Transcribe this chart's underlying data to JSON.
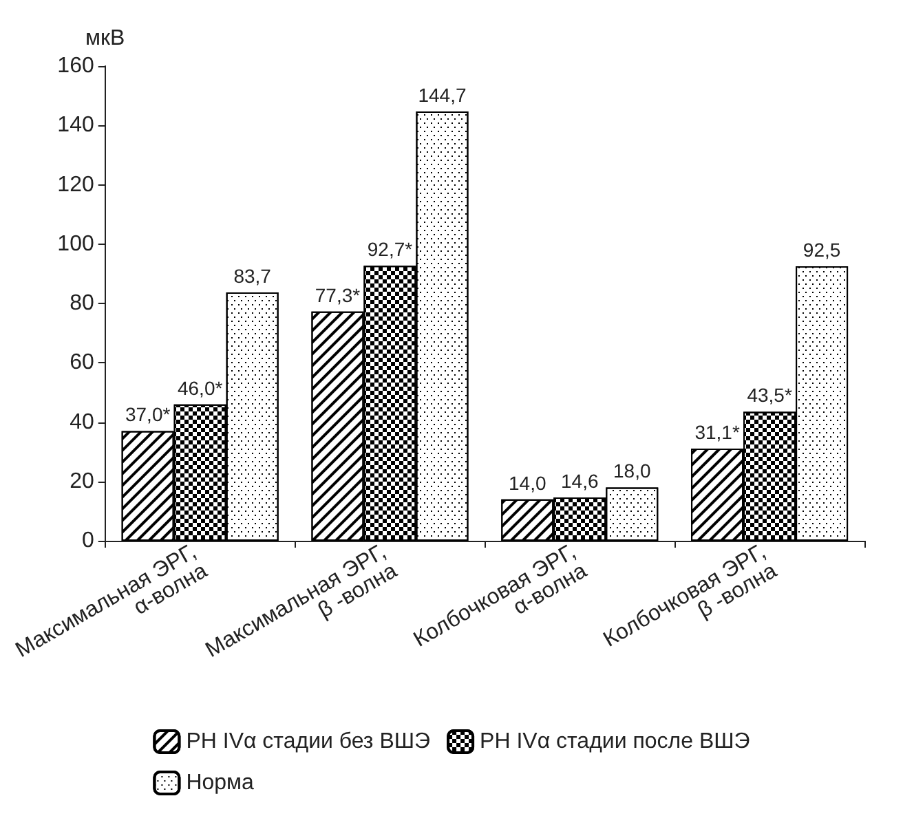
{
  "chart_data": {
    "type": "bar",
    "ylabel": "мкВ",
    "categories": [
      "Максимальная ЭРГ,\nα-волна",
      "Максимальная ЭРГ,\nβ -волна",
      "Колбочковая ЭРГ,\nα-волна",
      "Колбочковая ЭРГ,\nβ -волна"
    ],
    "series": [
      {
        "name": "РН IVα стадии без ВШЭ",
        "color": "#ffffff",
        "values": [
          37.0,
          77.3,
          14.0,
          31.1
        ],
        "value_labels": [
          "37,0*",
          "77,3*",
          "14,0",
          "31,1*"
        ]
      },
      {
        "name": "РН IVα стадии после ВШЭ",
        "color": "#ffffff",
        "values": [
          46.0,
          92.7,
          14.6,
          43.5
        ],
        "value_labels": [
          "46,0*",
          "92,7*",
          "14,6",
          "43,5*"
        ]
      },
      {
        "name": "Норма",
        "color": "#ffffff",
        "values": [
          83.7,
          144.7,
          18.0,
          92.5
        ],
        "value_labels": [
          "83,7",
          "144,7",
          "18,0",
          "92,5"
        ]
      }
    ],
    "ylim": [
      0,
      160
    ],
    "yticks": [
      0,
      20,
      40,
      60,
      80,
      100,
      120,
      140,
      160
    ],
    "grid": false,
    "legend": "bottom"
  }
}
